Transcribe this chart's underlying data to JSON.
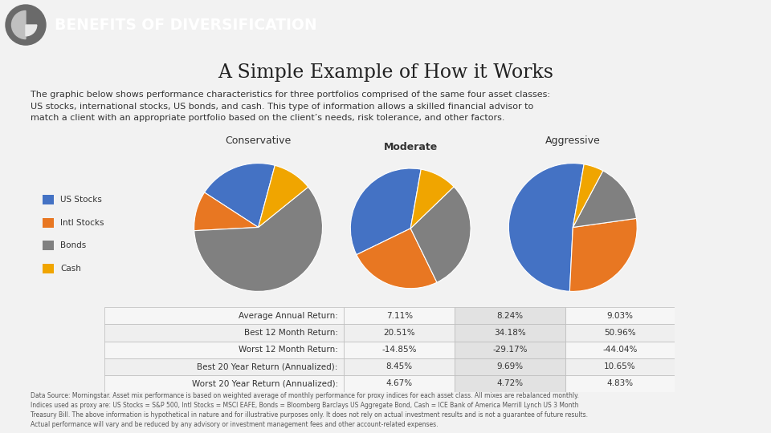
{
  "title": "BENEFITS OF DIVERSIFICATION",
  "subtitle": "A Simple Example of How it Works",
  "desc_line1": "The graphic below shows performance characteristics for three portfolios comprised of the same four asset classes:",
  "desc_line2": "US stocks, international stocks, US bonds, and cash. This type of information allows a skilled financial advisor to",
  "desc_line3": "match a client with an appropriate portfolio based on the client’s needs, risk tolerance, and other factors.",
  "portfolio_labels": [
    "Conservative",
    "Moderate",
    "Aggressive"
  ],
  "legend_labels": [
    "US Stocks",
    "Intl Stocks",
    "Bonds",
    "Cash"
  ],
  "colors": [
    "#4472C4",
    "#E87722",
    "#808080",
    "#F0A500"
  ],
  "conservative_slices": [
    20,
    10,
    60,
    10
  ],
  "moderate_slices": [
    35,
    25,
    30,
    10
  ],
  "aggressive_slices": [
    52,
    28,
    15,
    5
  ],
  "table_rows": [
    "Average Annual Return:",
    "Best 12 Month Return:",
    "Worst 12 Month Return:",
    "Best 20 Year Return (Annualized):",
    "Worst 20 Year Return (Annualized):"
  ],
  "conservative_values": [
    "7.11%",
    "20.51%",
    "-14.85%",
    "8.45%",
    "4.67%"
  ],
  "moderate_values": [
    "8.24%",
    "34.18%",
    "-29.17%",
    "9.69%",
    "4.72%"
  ],
  "aggressive_values": [
    "9.03%",
    "50.96%",
    "-44.04%",
    "10.65%",
    "4.83%"
  ],
  "header_bg": "#8a8a8a",
  "slide_bg": "#f2f2f2",
  "moderate_bg": "#d8d8d8",
  "footer_text": "Data Source: Morningstar. Asset mix performance is based on weighted average of monthly performance for proxy indices for each asset class. All mixes are rebalanced monthly.\nIndices used as proxy are: US Stocks = S&P 500, Intl Stocks = MSCI EAFE, Bonds = Bloomberg Barclays US Aggregate Bond, Cash = ICE Bank of America Merrill Lynch US 3 Month\nTreasury Bill. The above information is hypothetical in nature and for illustrative purposes only. It does not rely on actual investment results and is not a guarantee of future results.\nActual performance will vary and be reduced by any advisory or investment management fees and other account-related expenses."
}
